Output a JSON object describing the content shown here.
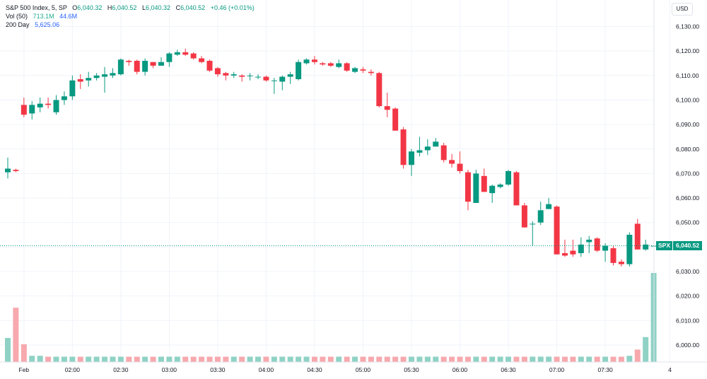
{
  "legend": {
    "title": "S&P 500 Index, 5, SP",
    "o_label": "O",
    "o_value": "6,040.32",
    "h_label": "H",
    "h_value": "6,040.52",
    "l_label": "L",
    "l_value": "6,040.32",
    "c_label": "C",
    "c_value": "6,040.52",
    "change": "+0.46 (+0.01%)",
    "vol_label": "Vol (50)",
    "vol_value1": "713.1M",
    "vol_value2": "44.6M",
    "ma_label": "200 Day",
    "ma_value": "5,625.06"
  },
  "currency": "USD",
  "price_tag": {
    "symbol": "SPX",
    "value": "6,040.52"
  },
  "colors": {
    "up": "#089981",
    "down": "#f23645",
    "vol_up": "#8fd2c5",
    "vol_down": "#f7a9ae",
    "grid": "#f0f3fa",
    "text": "#131722"
  },
  "chart_data": {
    "type": "candlestick",
    "y_ticks": [
      "6,130.00",
      "6,120.00",
      "6,110.00",
      "6,100.00",
      "6,090.00",
      "6,080.00",
      "6,070.00",
      "6,060.00",
      "6,050.00",
      "6,040.00",
      "6,030.00",
      "6,020.00",
      "6,010.00",
      "6,000.00"
    ],
    "y_tick_values": [
      6130,
      6120,
      6110,
      6100,
      6090,
      6080,
      6070,
      6060,
      6050,
      6040,
      6030,
      6020,
      6010,
      6000
    ],
    "ylim": [
      5996,
      6134
    ],
    "x_ticks": [
      {
        "label": "Feb",
        "index": 2
      },
      {
        "label": "02:00",
        "index": 8
      },
      {
        "label": "02:30",
        "index": 14
      },
      {
        "label": "03:00",
        "index": 20
      },
      {
        "label": "03:30",
        "index": 26
      },
      {
        "label": "04:00",
        "index": 32
      },
      {
        "label": "04:30",
        "index": 38
      },
      {
        "label": "05:00",
        "index": 44
      },
      {
        "label": "05:30",
        "index": 50
      },
      {
        "label": "06:00",
        "index": 56
      },
      {
        "label": "06:30",
        "index": 62
      },
      {
        "label": "07:00",
        "index": 68
      },
      {
        "label": "07:30",
        "index": 74
      },
      {
        "label": "4",
        "index": 82
      }
    ],
    "last_price": 6040.52,
    "candles": [
      [
        6070.5,
        6072.0,
        6076.5,
        6068.0
      ],
      [
        6071.5,
        6071.0,
        6072.0,
        6070.5
      ],
      [
        6098.0,
        6094.0,
        6101.0,
        6093.0
      ],
      [
        6094.5,
        6098.0,
        6099.5,
        6092.0
      ],
      [
        6097.0,
        6098.5,
        6101.0,
        6095.0
      ],
      [
        6098.5,
        6098.0,
        6101.0,
        6096.5
      ],
      [
        6095.0,
        6100.0,
        6102.0,
        6094.0
      ],
      [
        6100.0,
        6101.5,
        6103.5,
        6098.0
      ],
      [
        6101.5,
        6108.0,
        6110.0,
        6100.0
      ],
      [
        6108.5,
        6107.5,
        6110.5,
        6104.5
      ],
      [
        6108.0,
        6109.0,
        6111.5,
        6105.5
      ],
      [
        6109.0,
        6110.0,
        6111.0,
        6108.0
      ],
      [
        6109.5,
        6110.5,
        6113.5,
        6103.0
      ],
      [
        6110.0,
        6111.0,
        6113.0,
        6109.0
      ],
      [
        6110.5,
        6116.5,
        6117.0,
        6110.0
      ],
      [
        6116.0,
        6115.5,
        6116.5,
        6114.0
      ],
      [
        6116.0,
        6111.5,
        6116.5,
        6110.5
      ],
      [
        6111.5,
        6116.0,
        6117.0,
        6110.0
      ],
      [
        6115.5,
        6114.0,
        6115.5,
        6113.0
      ],
      [
        6114.0,
        6115.5,
        6117.5,
        6114.0
      ],
      [
        6115.5,
        6119.0,
        6119.5,
        6113.5
      ],
      [
        6118.5,
        6119.5,
        6120.5,
        6118.0
      ],
      [
        6119.5,
        6118.5,
        6121.0,
        6118.0
      ],
      [
        6119.0,
        6117.0,
        6119.5,
        6116.5
      ],
      [
        6117.0,
        6115.5,
        6118.0,
        6115.0
      ],
      [
        6116.0,
        6112.0,
        6116.5,
        6111.5
      ],
      [
        6113.0,
        6110.5,
        6113.5,
        6109.5
      ],
      [
        6111.0,
        6110.0,
        6111.5,
        6108.0
      ],
      [
        6110.0,
        6110.5,
        6111.5,
        6109.0
      ],
      [
        6110.0,
        6109.5,
        6110.5,
        6107.5
      ],
      [
        6110.0,
        6110.0,
        6111.0,
        6108.0
      ],
      [
        6109.5,
        6109.5,
        6110.5,
        6108.5
      ],
      [
        6109.5,
        6108.0,
        6110.0,
        6107.5
      ],
      [
        6108.0,
        6108.0,
        6109.0,
        6102.5
      ],
      [
        6107.5,
        6109.5,
        6110.0,
        6104.0
      ],
      [
        6109.5,
        6110.5,
        6111.5,
        6106.5
      ],
      [
        6108.5,
        6115.5,
        6116.5,
        6108.0
      ],
      [
        6115.0,
        6116.5,
        6117.0,
        6114.5
      ],
      [
        6116.5,
        6115.5,
        6118.0,
        6114.5
      ],
      [
        6115.0,
        6114.5,
        6115.5,
        6114.0
      ],
      [
        6115.0,
        6114.0,
        6115.5,
        6113.5
      ],
      [
        6113.5,
        6115.0,
        6116.5,
        6113.0
      ],
      [
        6115.0,
        6112.0,
        6115.5,
        6111.5
      ],
      [
        6111.5,
        6113.0,
        6113.5,
        6111.0
      ],
      [
        6112.5,
        6112.0,
        6113.5,
        6111.0
      ],
      [
        6111.5,
        6111.0,
        6112.5,
        6110.0
      ],
      [
        6111.0,
        6097.5,
        6111.5,
        6097.0
      ],
      [
        6097.5,
        6096.0,
        6103.0,
        6093.0
      ],
      [
        6096.5,
        6087.5,
        6097.0,
        6087.5
      ],
      [
        6088.0,
        6073.5,
        6089.0,
        6072.0
      ],
      [
        6073.5,
        6079.0,
        6080.0,
        6069.0
      ],
      [
        6078.5,
        6079.5,
        6085.0,
        6077.0
      ],
      [
        6079.5,
        6081.0,
        6084.0,
        6077.5
      ],
      [
        6081.0,
        6083.0,
        6084.5,
        6081.0
      ],
      [
        6081.5,
        6075.5,
        6082.5,
        6074.5
      ],
      [
        6075.5,
        6074.0,
        6078.0,
        6072.5
      ],
      [
        6074.0,
        6071.0,
        6079.0,
        6070.0
      ],
      [
        6070.5,
        6058.5,
        6071.5,
        6055.0
      ],
      [
        6058.0,
        6070.0,
        6071.5,
        6058.0
      ],
      [
        6069.0,
        6062.5,
        6072.0,
        6062.5
      ],
      [
        6062.0,
        6065.0,
        6065.5,
        6058.0
      ],
      [
        6064.5,
        6065.5,
        6066.0,
        6064.0
      ],
      [
        6065.5,
        6071.0,
        6071.5,
        6065.0
      ],
      [
        6070.5,
        6057.0,
        6071.0,
        6057.0
      ],
      [
        6057.0,
        6048.0,
        6058.0,
        6048.0
      ],
      [
        6049.5,
        6049.5,
        6050.5,
        6040.5
      ],
      [
        6050.0,
        6055.0,
        6058.5,
        6049.0
      ],
      [
        6055.5,
        6057.5,
        6060.0,
        6056.0
      ],
      [
        6056.5,
        6037.0,
        6057.0,
        6037.0
      ],
      [
        6037.5,
        6036.5,
        6043.0,
        6036.0
      ],
      [
        6038.5,
        6037.0,
        6043.0,
        6036.0
      ],
      [
        6037.5,
        6041.0,
        6044.0,
        6036.0
      ],
      [
        6042.0,
        6043.0,
        6044.5,
        6037.5
      ],
      [
        6043.5,
        6038.5,
        6044.0,
        6038.0
      ],
      [
        6038.5,
        6040.5,
        6041.5,
        6034.0
      ],
      [
        6039.5,
        6033.5,
        6040.5,
        6032.5
      ],
      [
        6034.0,
        6033.0,
        6035.0,
        6032.0
      ],
      [
        6033.0,
        6045.0,
        6046.0,
        6032.0
      ],
      [
        6049.5,
        6039.0,
        6051.5,
        6039.0
      ],
      [
        6039.0,
        6041.0,
        6043.0,
        6038.5
      ],
      [
        6040.3,
        6040.5,
        6040.6,
        6040.3
      ]
    ],
    "volume": [
      27,
      61,
      20,
      7,
      7,
      6,
      6,
      6,
      6,
      6,
      6,
      6,
      6,
      6,
      6,
      6,
      6,
      6,
      6,
      6,
      6,
      6,
      6,
      6,
      6,
      6,
      6,
      6,
      6,
      6,
      6,
      6,
      6,
      6,
      6,
      6,
      6,
      6,
      6,
      6,
      6,
      6,
      6,
      6,
      6,
      6,
      6,
      6,
      6,
      6,
      6,
      6,
      6,
      6,
      6,
      6,
      6,
      6,
      6,
      6,
      6,
      6,
      6,
      6,
      6,
      6,
      6,
      6,
      6,
      6,
      6,
      6,
      6,
      6,
      6,
      6,
      6,
      7,
      14,
      28,
      100
    ],
    "grid": true
  }
}
